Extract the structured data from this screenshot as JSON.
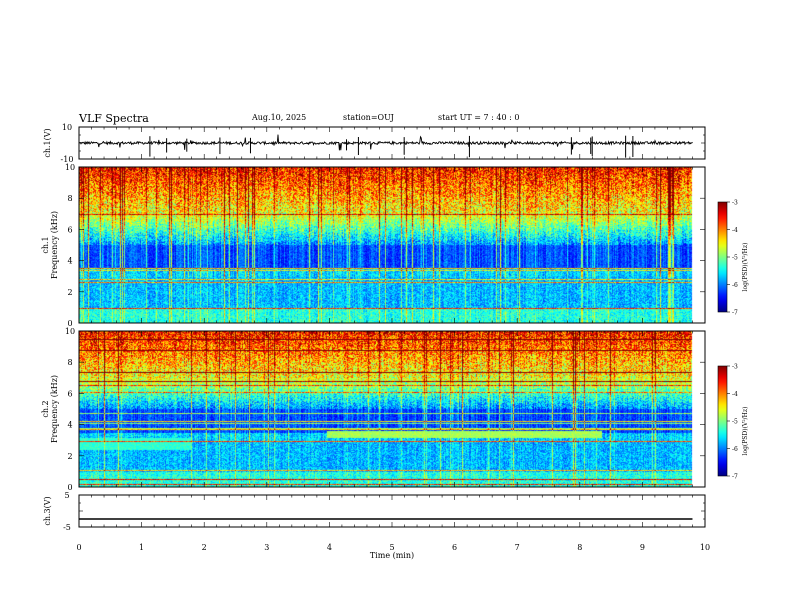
{
  "header": {
    "title": "VLF Spectra",
    "date": "Aug.10, 2025",
    "station": "station=OUJ",
    "start": "start  UT =   7 : 40 : 0"
  },
  "chart_data": {
    "type": "heatmap",
    "title": "VLF Spectra",
    "xlabel": "Time  (min)",
    "x_ticks": [
      "0",
      "1",
      "2",
      "3",
      "4",
      "5",
      "6",
      "7",
      "8",
      "9",
      "10"
    ],
    "xlim": [
      0,
      10
    ],
    "panels": [
      {
        "id": "ch1-waveform",
        "type": "line",
        "ylabel": "ch.1(V)",
        "ylim": [
          -10,
          10
        ],
        "y_ticks": [
          "10",
          "-10"
        ],
        "baseline": 0,
        "data_end_min": 9.8
      },
      {
        "id": "ch1-spectrogram",
        "type": "heatmap",
        "channel_label": "ch.1",
        "ylabel": "Frequency  (kHz)",
        "ylim": [
          0,
          10
        ],
        "y_ticks": [
          "0",
          "2",
          "4",
          "6",
          "8",
          "10"
        ],
        "colorbar_label": "log(PSD)(V²/Hz)",
        "colorbar_ticks": [
          "-3",
          "-4",
          "-5",
          "-6",
          "-7"
        ],
        "colorbar_range": [
          -7,
          -3
        ],
        "data_end_min": 9.8
      },
      {
        "id": "ch2-spectrogram",
        "type": "heatmap",
        "channel_label": "ch.2",
        "ylabel": "Frequency  (kHz)",
        "ylim": [
          0,
          10
        ],
        "y_ticks": [
          "0",
          "2",
          "4",
          "6",
          "8",
          "10"
        ],
        "colorbar_label": "log(PSD)(V²/Hz)",
        "colorbar_ticks": [
          "-3",
          "-4",
          "-5",
          "-6",
          "-7"
        ],
        "colorbar_range": [
          -7,
          -3
        ],
        "band_khz": [
          3.2,
          3.6
        ],
        "band_start_min": 3.95,
        "band_end_min": 8.35,
        "data_end_min": 9.8
      },
      {
        "id": "ch3-waveform",
        "type": "line",
        "ylabel": "ch.3(V)",
        "ylim": [
          -5,
          5
        ],
        "y_ticks": [
          "5",
          "-5"
        ],
        "constant_value": -2.5,
        "data_end_min": 9.8
      }
    ]
  }
}
